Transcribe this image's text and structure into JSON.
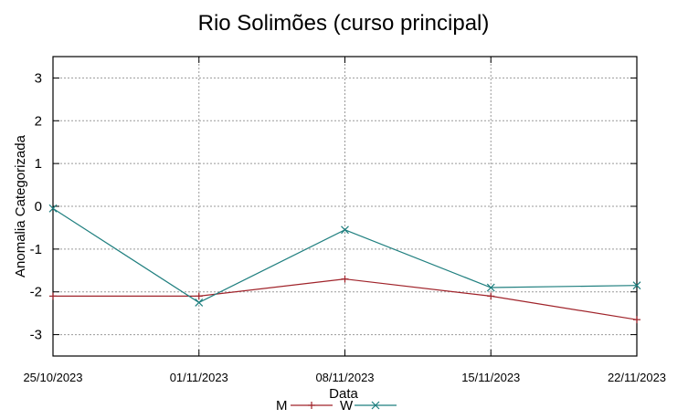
{
  "chart_data": {
    "type": "line",
    "title": "Rio Solimões (curso principal)",
    "xlabel": "Data",
    "ylabel": "Anomalia Categorizada",
    "x": [
      "25/10/2023",
      "01/11/2023",
      "08/11/2023",
      "15/11/2023",
      "22/11/2023"
    ],
    "ylim": [
      -3.5,
      3.5
    ],
    "yticks": [
      "3",
      "2",
      "1",
      "0",
      "-1",
      "-2",
      "-3"
    ],
    "grid": true,
    "legend_position": "bottom",
    "series": [
      {
        "name": "M",
        "color": "#a0232a",
        "marker": "plus",
        "values": [
          -2.1,
          -2.1,
          -1.7,
          -2.1,
          -2.65
        ]
      },
      {
        "name": "W",
        "color": "#1f7f7f",
        "marker": "x",
        "values": [
          -0.05,
          -2.25,
          -0.55,
          -1.9,
          -1.85
        ]
      }
    ]
  }
}
